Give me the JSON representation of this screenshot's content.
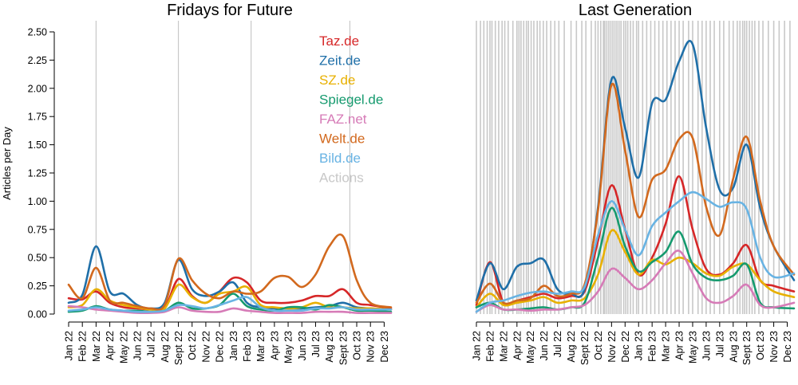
{
  "colors": {
    "Taz.de": "#d62728",
    "Zeit.de": "#1f6fa8",
    "SZ.de": "#e8b000",
    "Spiegel.de": "#159a6e",
    "FAZ.net": "#d67bb7",
    "Welt.de": "#d2691e",
    "Bild.de": "#68b3e3",
    "Actions": "#c8c8c8"
  },
  "chart_data": [
    {
      "type": "line",
      "title": "Fridays for Future",
      "ylabel": "Articles per Day",
      "ylim": [
        0,
        2.5
      ],
      "yticks": [
        "0.00",
        "0.25",
        "0.50",
        "0.75",
        "1.00",
        "1.25",
        "1.50",
        "1.75",
        "2.00",
        "2.25",
        "2.50"
      ],
      "x_range": [
        0,
        23.5
      ],
      "categories": [
        "Jan 22",
        "Feb 22",
        "Mar 22",
        "Apr 22",
        "May 22",
        "Jun 22",
        "Jul 22",
        "Aug 22",
        "Sept 22",
        "Oct 22",
        "Nov 22",
        "Dec 22",
        "Jan 23",
        "Feb 23",
        "Mar 23",
        "Apr 23",
        "May 23",
        "Jun 23",
        "Jul 23",
        "Aug 23",
        "Sept 23",
        "Oct 23",
        "Nov 23",
        "Dec 23"
      ],
      "actions": [
        2,
        8,
        13.3,
        20.5
      ],
      "legend": [
        "Taz.de",
        "Zeit.de",
        "SZ.de",
        "Spiegel.de",
        "FAZ.net",
        "Welt.de",
        "Bild.de",
        "Actions"
      ],
      "series": [
        {
          "name": "Taz.de",
          "x": [
            0,
            1,
            2,
            3,
            4,
            5,
            6,
            7,
            8,
            9,
            10,
            11,
            12,
            13,
            14,
            15,
            16,
            17,
            18,
            19,
            20,
            21,
            22,
            23.5
          ],
          "values": [
            0.14,
            0.13,
            0.2,
            0.1,
            0.06,
            0.05,
            0.04,
            0.05,
            0.31,
            0.16,
            0.1,
            0.2,
            0.32,
            0.28,
            0.12,
            0.1,
            0.1,
            0.12,
            0.16,
            0.16,
            0.22,
            0.1,
            0.08,
            0.05
          ]
        },
        {
          "name": "Zeit.de",
          "x": [
            0,
            1,
            2,
            3,
            4,
            5,
            6,
            7,
            8,
            9,
            10,
            11,
            12,
            13,
            14,
            15,
            16,
            17,
            18,
            19,
            20,
            21,
            22,
            23.5
          ],
          "values": [
            0.1,
            0.17,
            0.6,
            0.2,
            0.18,
            0.08,
            0.05,
            0.1,
            0.48,
            0.22,
            0.16,
            0.2,
            0.28,
            0.1,
            0.06,
            0.05,
            0.05,
            0.05,
            0.06,
            0.07,
            0.1,
            0.06,
            0.05,
            0.04
          ]
        },
        {
          "name": "SZ.de",
          "x": [
            0,
            1,
            2,
            3,
            4,
            5,
            6,
            7,
            8,
            9,
            10,
            11,
            12,
            13,
            14,
            15,
            16,
            17,
            18,
            19,
            20,
            21,
            22,
            23.5
          ],
          "values": [
            0.06,
            0.08,
            0.22,
            0.12,
            0.08,
            0.06,
            0.04,
            0.05,
            0.26,
            0.15,
            0.1,
            0.18,
            0.2,
            0.24,
            0.08,
            0.06,
            0.05,
            0.06,
            0.1,
            0.06,
            0.06,
            0.05,
            0.05,
            0.04
          ]
        },
        {
          "name": "Spiegel.de",
          "x": [
            0,
            1,
            2,
            3,
            4,
            5,
            6,
            7,
            8,
            9,
            10,
            11,
            12,
            13,
            14,
            15,
            16,
            17,
            18,
            19,
            20,
            21,
            22,
            23.5
          ],
          "values": [
            0.02,
            0.03,
            0.07,
            0.04,
            0.03,
            0.03,
            0.02,
            0.03,
            0.1,
            0.05,
            0.05,
            0.08,
            0.18,
            0.07,
            0.04,
            0.03,
            0.06,
            0.06,
            0.04,
            0.08,
            0.06,
            0.03,
            0.03,
            0.02
          ]
        },
        {
          "name": "FAZ.net",
          "x": [
            0,
            1,
            2,
            3,
            4,
            5,
            6,
            7,
            8,
            9,
            10,
            11,
            12,
            13,
            14,
            15,
            16,
            17,
            18,
            19,
            20,
            21,
            22,
            23.5
          ],
          "values": [
            0.07,
            0.06,
            0.04,
            0.03,
            0.02,
            0.01,
            0.01,
            0.02,
            0.06,
            0.03,
            0.02,
            0.02,
            0.05,
            0.03,
            0.02,
            0.01,
            0.01,
            0.01,
            0.02,
            0.02,
            0.02,
            0.01,
            0.01,
            0.01
          ]
        },
        {
          "name": "Welt.de",
          "x": [
            0,
            1,
            2,
            3,
            4,
            5,
            6,
            7,
            8,
            9,
            10,
            11,
            12,
            13,
            14,
            15,
            16,
            17,
            18,
            19,
            20,
            21,
            22,
            23.5
          ],
          "values": [
            0.26,
            0.14,
            0.41,
            0.12,
            0.1,
            0.07,
            0.05,
            0.08,
            0.49,
            0.3,
            0.18,
            0.14,
            0.2,
            0.18,
            0.2,
            0.32,
            0.33,
            0.24,
            0.35,
            0.6,
            0.69,
            0.3,
            0.1,
            0.06
          ]
        },
        {
          "name": "Bild.de",
          "x": [
            0,
            1,
            2,
            3,
            4,
            5,
            6,
            7,
            8,
            9,
            10,
            11,
            12,
            13,
            14,
            15,
            16,
            17,
            18,
            19,
            20,
            21,
            22,
            23.5
          ],
          "values": [
            0.03,
            0.04,
            0.06,
            0.04,
            0.03,
            0.02,
            0.02,
            0.03,
            0.08,
            0.07,
            0.05,
            0.08,
            0.12,
            0.15,
            0.06,
            0.03,
            0.03,
            0.03,
            0.05,
            0.05,
            0.06,
            0.04,
            0.04,
            0.04
          ]
        }
      ]
    },
    {
      "type": "line",
      "title": "Last Generation",
      "ylim": [
        0,
        2.5
      ],
      "x_range": [
        0,
        23.5
      ],
      "categories": [
        "Jan 22",
        "Feb 22",
        "Mar 22",
        "Apr 22",
        "May 22",
        "Jun 22",
        "Jul 22",
        "Aug 22",
        "Sept 22",
        "Oct 22",
        "Nov 22",
        "Dec 22",
        "Jan 23",
        "Feb 23",
        "Mar 23",
        "Apr 23",
        "May 23",
        "Jun 23",
        "Jul 23",
        "Aug 23",
        "Sept 23",
        "Oct 23",
        "Nov 23",
        "Dec 23"
      ],
      "actions": [
        0.0,
        0.3,
        0.55,
        0.8,
        1.0,
        1.15,
        1.4,
        1.65,
        1.9,
        2.1,
        2.35,
        2.7,
        3.0,
        3.15,
        3.3,
        3.5,
        3.7,
        3.85,
        4.05,
        4.25,
        4.5,
        4.7,
        4.95,
        5.2,
        5.5,
        5.8,
        6.1,
        6.5,
        7.0,
        7.4,
        7.8,
        8.1,
        8.5,
        8.8,
        9.0,
        9.2,
        9.4,
        9.5,
        9.65,
        9.8,
        9.95,
        10.1,
        10.25,
        10.4,
        10.55,
        10.7,
        10.9,
        11.05,
        11.2,
        11.4,
        11.6,
        11.85,
        12.0,
        12.3,
        12.6,
        12.9,
        13.2,
        13.5,
        13.8,
        14.1,
        14.4,
        14.7,
        15.0,
        15.3,
        15.7,
        16.0,
        16.4,
        16.7,
        17.0,
        17.3,
        17.6,
        18.0,
        18.3,
        18.7,
        19.0,
        19.3,
        19.5,
        19.7,
        19.85,
        20.0,
        20.2,
        20.4,
        20.6,
        20.9,
        21.2,
        21.6,
        22.0,
        22.4,
        22.8,
        23.2
      ],
      "series": [
        {
          "name": "Taz.de",
          "x": [
            0,
            1,
            2,
            3,
            4,
            5,
            6,
            7,
            8,
            9,
            10,
            11,
            12,
            13,
            14,
            15,
            16,
            17,
            18,
            19,
            20,
            21,
            22,
            23.5
          ],
          "values": [
            0.08,
            0.46,
            0.1,
            0.12,
            0.15,
            0.18,
            0.14,
            0.16,
            0.2,
            0.65,
            1.14,
            0.75,
            0.35,
            0.5,
            0.8,
            1.22,
            0.75,
            0.4,
            0.35,
            0.45,
            0.61,
            0.3,
            0.25,
            0.2
          ]
        },
        {
          "name": "Zeit.de",
          "x": [
            0,
            1,
            2,
            3,
            4,
            5,
            6,
            7,
            8,
            9,
            10,
            11,
            12,
            13,
            14,
            15,
            16,
            17,
            18,
            19,
            20,
            21,
            22,
            23.5
          ],
          "values": [
            0.12,
            0.45,
            0.22,
            0.42,
            0.45,
            0.48,
            0.22,
            0.18,
            0.22,
            0.95,
            2.08,
            1.65,
            1.21,
            1.87,
            1.9,
            2.24,
            2.39,
            1.65,
            1.1,
            1.12,
            1.5,
            0.94,
            0.6,
            0.3
          ]
        },
        {
          "name": "SZ.de",
          "x": [
            0,
            1,
            2,
            3,
            4,
            5,
            6,
            7,
            8,
            9,
            10,
            11,
            12,
            13,
            14,
            15,
            16,
            17,
            18,
            19,
            20,
            21,
            22,
            23.5
          ],
          "values": [
            0.06,
            0.18,
            0.08,
            0.1,
            0.12,
            0.15,
            0.1,
            0.12,
            0.14,
            0.35,
            0.74,
            0.55,
            0.35,
            0.48,
            0.44,
            0.5,
            0.45,
            0.36,
            0.34,
            0.42,
            0.44,
            0.3,
            0.2,
            0.15
          ]
        },
        {
          "name": "Spiegel.de",
          "x": [
            0,
            1,
            2,
            3,
            4,
            5,
            6,
            7,
            8,
            9,
            10,
            11,
            12,
            13,
            14,
            15,
            16,
            17,
            18,
            19,
            20,
            21,
            22,
            23.5
          ],
          "values": [
            0.06,
            0.1,
            0.04,
            0.04,
            0.05,
            0.06,
            0.04,
            0.06,
            0.1,
            0.5,
            0.94,
            0.6,
            0.38,
            0.46,
            0.55,
            0.73,
            0.44,
            0.32,
            0.3,
            0.34,
            0.44,
            0.1,
            0.06,
            0.05
          ]
        },
        {
          "name": "FAZ.net",
          "x": [
            0,
            1,
            2,
            3,
            4,
            5,
            6,
            7,
            8,
            9,
            10,
            11,
            12,
            13,
            14,
            15,
            16,
            17,
            18,
            19,
            20,
            21,
            22,
            23.5
          ],
          "values": [
            0.02,
            0.08,
            0.04,
            0.04,
            0.03,
            0.04,
            0.04,
            0.06,
            0.08,
            0.2,
            0.4,
            0.32,
            0.22,
            0.3,
            0.45,
            0.56,
            0.36,
            0.14,
            0.1,
            0.16,
            0.26,
            0.08,
            0.06,
            0.1
          ]
        },
        {
          "name": "Welt.de",
          "x": [
            0,
            1,
            2,
            3,
            4,
            5,
            6,
            7,
            8,
            9,
            10,
            11,
            12,
            13,
            14,
            15,
            16,
            17,
            18,
            19,
            20,
            21,
            22,
            23.5
          ],
          "values": [
            0.1,
            0.27,
            0.1,
            0.12,
            0.14,
            0.25,
            0.16,
            0.18,
            0.26,
            0.92,
            2.03,
            1.45,
            0.86,
            1.19,
            1.28,
            1.55,
            1.56,
            0.95,
            0.7,
            1.2,
            1.57,
            1.0,
            0.6,
            0.35
          ]
        },
        {
          "name": "Bild.de",
          "x": [
            0,
            1,
            2,
            3,
            4,
            5,
            6,
            7,
            8,
            9,
            10,
            11,
            12,
            13,
            14,
            15,
            16,
            17,
            18,
            19,
            20,
            21,
            22,
            23.5
          ],
          "values": [
            0.02,
            0.1,
            0.12,
            0.16,
            0.19,
            0.2,
            0.18,
            0.2,
            0.24,
            0.7,
            1.0,
            0.75,
            0.52,
            0.78,
            0.9,
            1.0,
            1.08,
            1.02,
            0.95,
            0.99,
            0.93,
            0.5,
            0.33,
            0.36
          ]
        }
      ]
    }
  ]
}
